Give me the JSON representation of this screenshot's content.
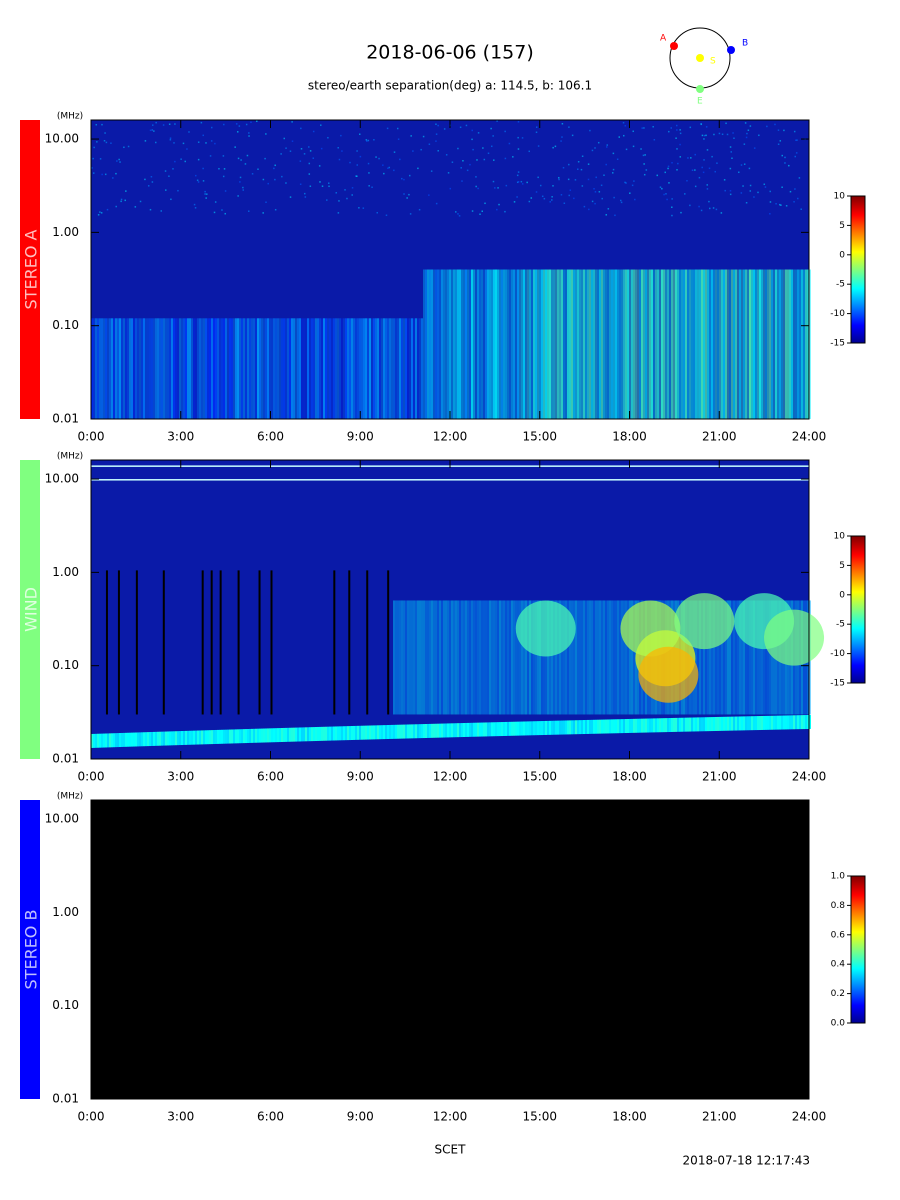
{
  "title": "2018-06-06 (157)",
  "subtitle": "stereo/earth separation(deg) a: 114.5, b: 106.1",
  "orbit": {
    "labels": [
      "A",
      "B",
      "S",
      "E"
    ]
  },
  "x_label": "SCET",
  "timestamp": "2018-07-18 12:17:43",
  "chart_data": [
    {
      "type": "spectrogram",
      "label": "STEREO A",
      "label_color": "#ff0000",
      "y_unit": "(MHz)",
      "log_y": true,
      "xlim": [
        0,
        24
      ],
      "xticks": [
        {
          "value": 0,
          "label": "0:00"
        },
        {
          "value": 3,
          "label": "3:00"
        },
        {
          "value": 6,
          "label": "6:00"
        },
        {
          "value": 9,
          "label": "9:00"
        },
        {
          "value": 12,
          "label": "12:00"
        },
        {
          "value": 15,
          "label": "15:00"
        },
        {
          "value": 18,
          "label": "18:00"
        },
        {
          "value": 21,
          "label": "21:00"
        },
        {
          "value": 24,
          "label": "24:00"
        }
      ],
      "ylim": [
        0.01,
        16
      ],
      "yticks": [
        {
          "value": 0.01,
          "label": "0.01"
        },
        {
          "value": 0.1,
          "label": "0.10"
        },
        {
          "value": 1,
          "label": "1.00"
        },
        {
          "value": 10,
          "label": "10.00"
        }
      ],
      "colorbar": {
        "lim": [
          -15,
          10
        ],
        "ticks": [
          10,
          5,
          0,
          -5,
          -10,
          -15
        ]
      }
    },
    {
      "type": "spectrogram",
      "label": "WIND",
      "label_color": "#80ff80",
      "y_unit": "(MHz)",
      "log_y": true,
      "xlim": [
        0,
        24
      ],
      "xticks": [
        {
          "value": 0,
          "label": "0:00"
        },
        {
          "value": 3,
          "label": "3:00"
        },
        {
          "value": 6,
          "label": "6:00"
        },
        {
          "value": 9,
          "label": "9:00"
        },
        {
          "value": 12,
          "label": "12:00"
        },
        {
          "value": 15,
          "label": "15:00"
        },
        {
          "value": 18,
          "label": "18:00"
        },
        {
          "value": 21,
          "label": "21:00"
        },
        {
          "value": 24,
          "label": "24:00"
        }
      ],
      "ylim": [
        0.01,
        16
      ],
      "yticks": [
        {
          "value": 0.01,
          "label": "0.01"
        },
        {
          "value": 0.1,
          "label": "0.10"
        },
        {
          "value": 1,
          "label": "1.00"
        },
        {
          "value": 10,
          "label": "10.00"
        }
      ],
      "colorbar": {
        "lim": [
          -15,
          10
        ],
        "ticks": [
          10,
          5,
          0,
          -5,
          -10,
          -15
        ]
      }
    },
    {
      "type": "spectrogram",
      "label": "STEREO B",
      "label_color": "#0000ff",
      "y_unit": "(MHz)",
      "log_y": true,
      "xlim": [
        0,
        24
      ],
      "xticks": [
        {
          "value": 0,
          "label": "0:00"
        },
        {
          "value": 3,
          "label": "3:00"
        },
        {
          "value": 6,
          "label": "6:00"
        },
        {
          "value": 9,
          "label": "9:00"
        },
        {
          "value": 12,
          "label": "12:00"
        },
        {
          "value": 15,
          "label": "15:00"
        },
        {
          "value": 18,
          "label": "18:00"
        },
        {
          "value": 21,
          "label": "21:00"
        },
        {
          "value": 24,
          "label": "24:00"
        }
      ],
      "ylim": [
        0.01,
        16
      ],
      "yticks": [
        {
          "value": 0.01,
          "label": "0.01"
        },
        {
          "value": 0.1,
          "label": "0.10"
        },
        {
          "value": 1,
          "label": "1.00"
        },
        {
          "value": 10,
          "label": "10.00"
        }
      ],
      "colorbar": {
        "lim": [
          0,
          1
        ],
        "ticks": [
          {
            "value": 0,
            "label": "0.0"
          },
          {
            "value": 0.2,
            "label": "0.2"
          },
          {
            "value": 0.4,
            "label": "0.4"
          },
          {
            "value": 0.6,
            "label": "0.6"
          },
          {
            "value": 0.8,
            "label": "0.8"
          },
          {
            "value": 1,
            "label": "1.0"
          }
        ]
      }
    }
  ]
}
